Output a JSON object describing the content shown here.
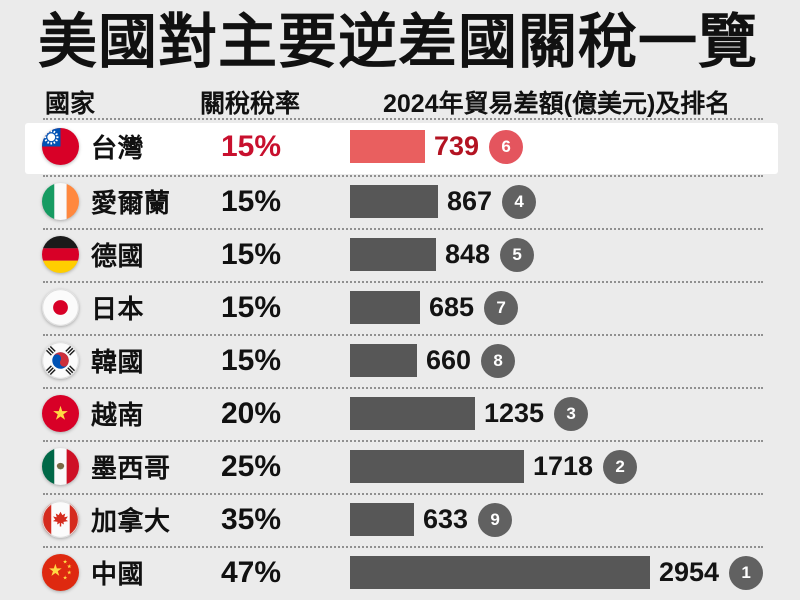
{
  "title": "美國對主要逆差國關稅一覽",
  "columns": {
    "country": "國家",
    "tariff": "關稅稅率",
    "balance": "2024年貿易差額(億美元)及排名"
  },
  "rows": [
    {
      "country": "台灣",
      "flag": "taiwan",
      "tariff": "15%",
      "value": 739,
      "rank": 6,
      "highlighted": true
    },
    {
      "country": "愛爾蘭",
      "flag": "ireland",
      "tariff": "15%",
      "value": 867,
      "rank": 4,
      "highlighted": false
    },
    {
      "country": "德國",
      "flag": "germany",
      "tariff": "15%",
      "value": 848,
      "rank": 5,
      "highlighted": false
    },
    {
      "country": "日本",
      "flag": "japan",
      "tariff": "15%",
      "value": 685,
      "rank": 7,
      "highlighted": false
    },
    {
      "country": "韓國",
      "flag": "korea",
      "tariff": "15%",
      "value": 660,
      "rank": 8,
      "highlighted": false
    },
    {
      "country": "越南",
      "flag": "vietnam",
      "tariff": "20%",
      "value": 1235,
      "rank": 3,
      "highlighted": false
    },
    {
      "country": "墨西哥",
      "flag": "mexico",
      "tariff": "25%",
      "value": 1718,
      "rank": 2,
      "highlighted": false
    },
    {
      "country": "加拿大",
      "flag": "canada",
      "tariff": "35%",
      "value": 633,
      "rank": 9,
      "highlighted": false
    },
    {
      "country": "中國",
      "flag": "china",
      "tariff": "47%",
      "value": 2954,
      "rank": 1,
      "highlighted": false
    }
  ],
  "colors": {
    "background": "#ebebeb",
    "text": "#111111",
    "separator": "#909090",
    "highlight_bg": "#ffffff",
    "bar_gray": "#575757",
    "badge_gray": "#616161",
    "value_text": "#141414",
    "accent_red": "#c8102e",
    "bar_red": "#e95f5f",
    "badge_red": "#e4555e",
    "value_red": "#b31322"
  },
  "chart_data": {
    "type": "bar",
    "title": "美國對主要逆差國關稅一覽",
    "column_headers": [
      "國家",
      "關稅稅率",
      "2024年貿易差額(億美元)及排名"
    ],
    "categories": [
      "台灣",
      "愛爾蘭",
      "德國",
      "日本",
      "韓國",
      "越南",
      "墨西哥",
      "加拿大",
      "中國"
    ],
    "series": [
      {
        "name": "關稅稅率(%)",
        "values": [
          15,
          15,
          15,
          15,
          15,
          20,
          25,
          35,
          47
        ]
      },
      {
        "name": "2024年貿易差額(億美元)",
        "values": [
          739,
          867,
          848,
          685,
          660,
          1235,
          1718,
          633,
          2954
        ]
      },
      {
        "name": "排名",
        "values": [
          6,
          4,
          5,
          7,
          8,
          3,
          2,
          9,
          1
        ]
      }
    ],
    "highlighted_category": "台灣",
    "layout": {
      "orientation": "horizontal",
      "value_range": [
        0,
        2954
      ],
      "grid": false,
      "legend": false
    }
  }
}
